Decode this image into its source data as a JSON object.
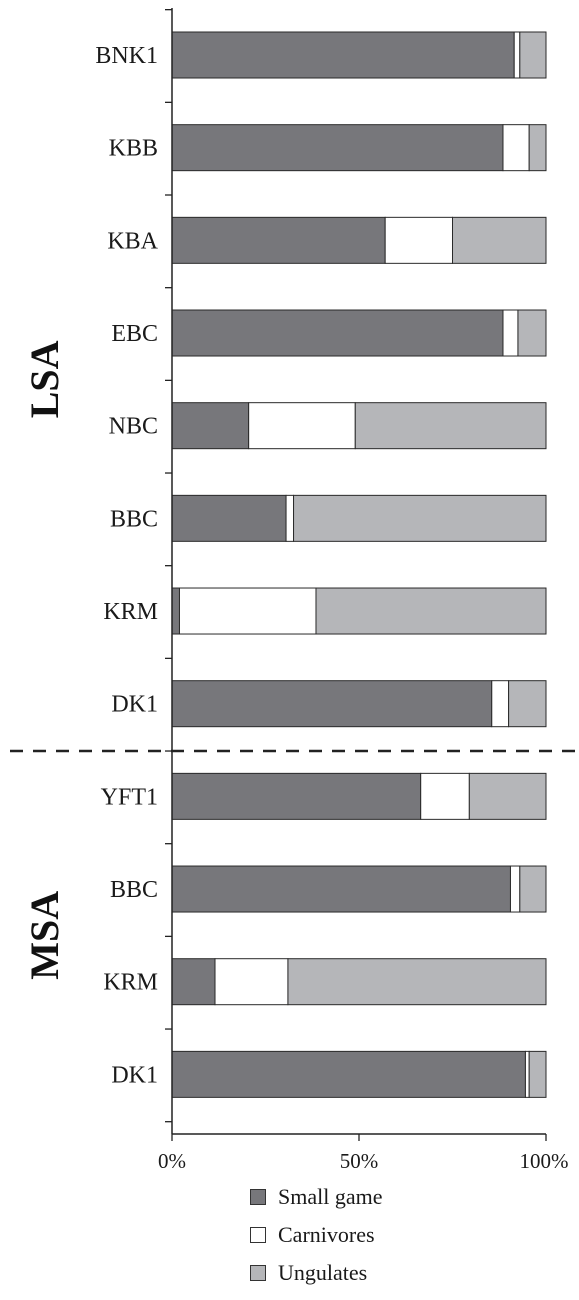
{
  "chart_data": {
    "type": "bar",
    "orientation": "horizontal",
    "stacked": true,
    "percent": true,
    "groups": [
      {
        "name": "LSA",
        "categories": [
          "BNK1",
          "KBB",
          "KBA",
          "EBC",
          "NBC",
          "BBC",
          "KRM",
          "DK1"
        ]
      },
      {
        "name": "MSA",
        "categories": [
          "YFT1",
          "BBC",
          "KRM",
          "DK1"
        ]
      }
    ],
    "categories": [
      "BNK1",
      "KBB",
      "KBA",
      "EBC",
      "NBC",
      "BBC",
      "KRM",
      "DK1",
      "YFT1",
      "BBC",
      "KRM",
      "DK1"
    ],
    "series": [
      {
        "name": "Small game",
        "color": "#77777b",
        "values": [
          91.5,
          88.5,
          57,
          88.5,
          20.5,
          30.5,
          2,
          85.5,
          66.5,
          90.5,
          11.5,
          94.5
        ]
      },
      {
        "name": "Carnivores",
        "color": "#ffffff",
        "values": [
          1.5,
          7,
          18,
          4,
          28.5,
          2,
          36.5,
          4.5,
          13,
          2.5,
          19.5,
          1
        ]
      },
      {
        "name": "Ungulates",
        "color": "#b5b6b9",
        "values": [
          7,
          4.5,
          25,
          7.5,
          51,
          67.5,
          61.5,
          10,
          20.5,
          7,
          69,
          4.5
        ]
      }
    ],
    "xlim": [
      0,
      100
    ],
    "x_ticks": [
      "0%",
      "50%",
      "100%"
    ],
    "xlabel": "",
    "ylabel": "",
    "legend_position": "bottom",
    "group_separator": "dashed line between DK1 (LSA) and YFT1 (MSA)"
  }
}
